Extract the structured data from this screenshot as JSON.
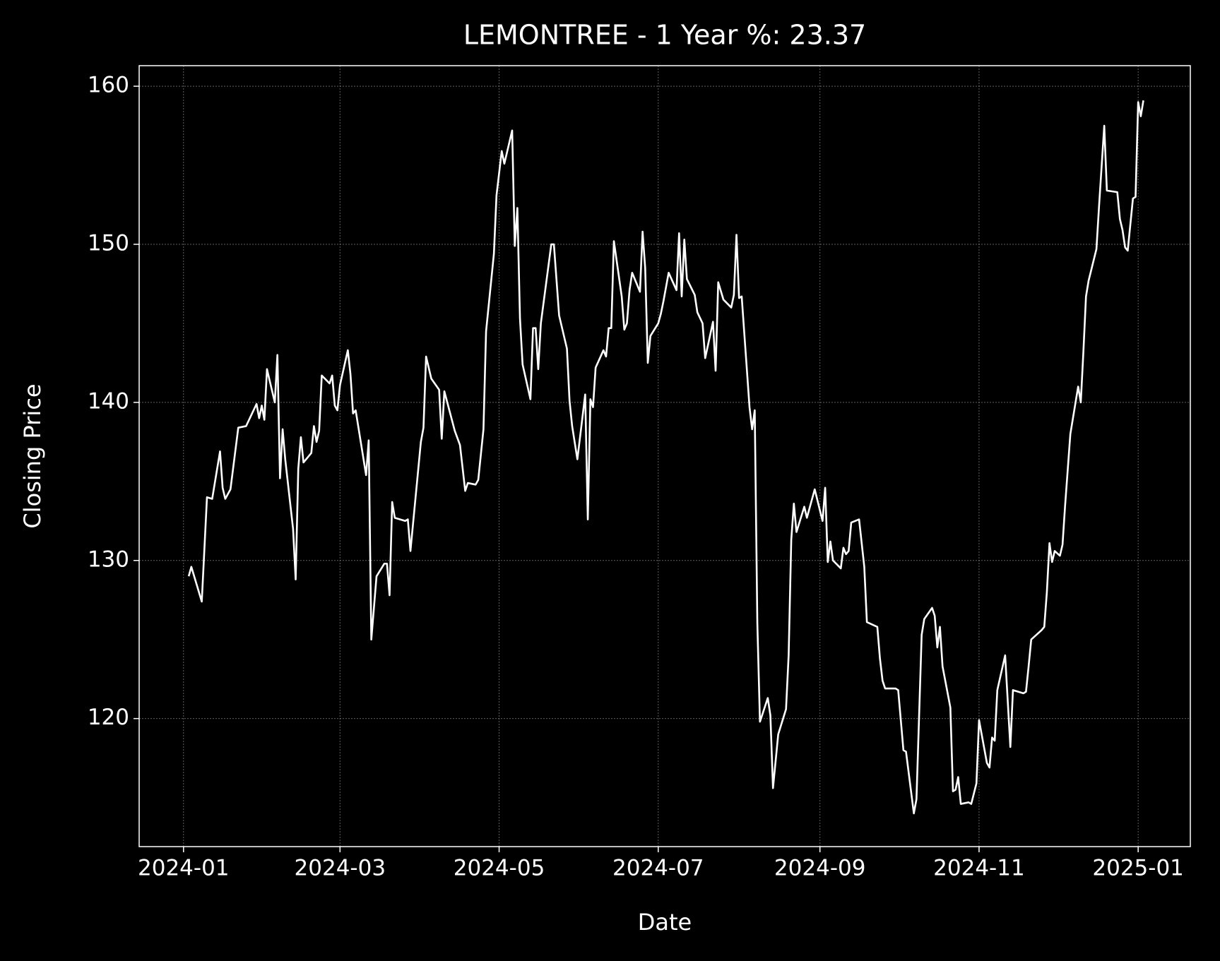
{
  "chart_data": {
    "type": "line",
    "title": "LEMONTREE - 1 Year %: 23.37",
    "xlabel": "Date",
    "ylabel": "Closing Price",
    "color": "#ffffff",
    "grid": true,
    "xlim": [
      "2023-12-15",
      "2025-01-21"
    ],
    "xticks": [
      "2024-01",
      "2024-03",
      "2024-05",
      "2024-07",
      "2024-09",
      "2024-11",
      "2025-01"
    ],
    "ylim": [
      111.9,
      161.3
    ],
    "yticks": [
      120,
      130,
      140,
      150,
      160
    ],
    "x": [
      "2024-01-03",
      "2024-01-04",
      "2024-01-08",
      "2024-01-10",
      "2024-01-12",
      "2024-01-15",
      "2024-01-16",
      "2024-01-17",
      "2024-01-19",
      "2024-01-22",
      "2024-01-25",
      "2024-01-29",
      "2024-01-30",
      "2024-01-31",
      "2024-02-01",
      "2024-02-02",
      "2024-02-05",
      "2024-02-06",
      "2024-02-07",
      "2024-02-08",
      "2024-02-09",
      "2024-02-12",
      "2024-02-13",
      "2024-02-14",
      "2024-02-15",
      "2024-02-16",
      "2024-02-19",
      "2024-02-20",
      "2024-02-21",
      "2024-02-22",
      "2024-02-23",
      "2024-02-26",
      "2024-02-27",
      "2024-02-28",
      "2024-02-29",
      "2024-03-01",
      "2024-03-04",
      "2024-03-05",
      "2024-03-06",
      "2024-03-07",
      "2024-03-11",
      "2024-03-12",
      "2024-03-13",
      "2024-03-15",
      "2024-03-18",
      "2024-03-19",
      "2024-03-20",
      "2024-03-21",
      "2024-03-22",
      "2024-03-26",
      "2024-03-27",
      "2024-03-28",
      "2024-04-01",
      "2024-04-02",
      "2024-04-03",
      "2024-04-05",
      "2024-04-08",
      "2024-04-09",
      "2024-04-10",
      "2024-04-14",
      "2024-04-16",
      "2024-04-18",
      "2024-04-19",
      "2024-04-22",
      "2024-04-23",
      "2024-04-25",
      "2024-04-26",
      "2024-04-29",
      "2024-04-30",
      "2024-05-02",
      "2024-05-03",
      "2024-05-06",
      "2024-05-07",
      "2024-05-08",
      "2024-05-09",
      "2024-05-10",
      "2024-05-13",
      "2024-05-14",
      "2024-05-15",
      "2024-05-16",
      "2024-05-17",
      "2024-05-21",
      "2024-05-22",
      "2024-05-24",
      "2024-05-27",
      "2024-05-28",
      "2024-05-29",
      "2024-05-31",
      "2024-06-03",
      "2024-06-04",
      "2024-06-05",
      "2024-06-06",
      "2024-06-07",
      "2024-06-10",
      "2024-06-11",
      "2024-06-12",
      "2024-06-13",
      "2024-06-14",
      "2024-06-17",
      "2024-06-18",
      "2024-06-19",
      "2024-06-20",
      "2024-06-21",
      "2024-06-24",
      "2024-06-25",
      "2024-06-26",
      "2024-06-27",
      "2024-06-28",
      "2024-07-01",
      "2024-07-02",
      "2024-07-03",
      "2024-07-05",
      "2024-07-08",
      "2024-07-09",
      "2024-07-10",
      "2024-07-11",
      "2024-07-12",
      "2024-07-15",
      "2024-07-16",
      "2024-07-18",
      "2024-07-19",
      "2024-07-22",
      "2024-07-23",
      "2024-07-24",
      "2024-07-26",
      "2024-07-29",
      "2024-07-30",
      "2024-07-31",
      "2024-08-01",
      "2024-08-02",
      "2024-08-05",
      "2024-08-06",
      "2024-08-07",
      "2024-08-08",
      "2024-08-09",
      "2024-08-12",
      "2024-08-13",
      "2024-08-14",
      "2024-08-16",
      "2024-08-19",
      "2024-08-20",
      "2024-08-21",
      "2024-08-22",
      "2024-08-23",
      "2024-08-26",
      "2024-08-27",
      "2024-08-30",
      "2024-09-02",
      "2024-09-03",
      "2024-09-04",
      "2024-09-05",
      "2024-09-06",
      "2024-09-09",
      "2024-09-10",
      "2024-09-11",
      "2024-09-12",
      "2024-09-13",
      "2024-09-16",
      "2024-09-18",
      "2024-09-19",
      "2024-09-23",
      "2024-09-24",
      "2024-09-25",
      "2024-09-26",
      "2024-09-30",
      "2024-10-01",
      "2024-10-03",
      "2024-10-04",
      "2024-10-07",
      "2024-10-08",
      "2024-10-10",
      "2024-10-11",
      "2024-10-14",
      "2024-10-15",
      "2024-10-16",
      "2024-10-17",
      "2024-10-18",
      "2024-10-21",
      "2024-10-22",
      "2024-10-23",
      "2024-10-24",
      "2024-10-25",
      "2024-10-28",
      "2024-10-29",
      "2024-10-31",
      "2024-11-01",
      "2024-11-04",
      "2024-11-05",
      "2024-11-06",
      "2024-11-07",
      "2024-11-08",
      "2024-11-11",
      "2024-11-13",
      "2024-11-14",
      "2024-11-18",
      "2024-11-19",
      "2024-11-20",
      "2024-11-21",
      "2024-11-25",
      "2024-11-26",
      "2024-11-27",
      "2024-11-28",
      "2024-11-29",
      "2024-11-30",
      "2024-12-02",
      "2024-12-03",
      "2024-12-04",
      "2024-12-06",
      "2024-12-09",
      "2024-12-10",
      "2024-12-11",
      "2024-12-12",
      "2024-12-13",
      "2024-12-16",
      "2024-12-17",
      "2024-12-19",
      "2024-12-20",
      "2024-12-24",
      "2024-12-25",
      "2024-12-26",
      "2024-12-27",
      "2024-12-28",
      "2024-12-30",
      "2024-12-31",
      "2025-01-01",
      "2025-01-02",
      "2025-01-03"
    ],
    "values": [
      129.0,
      129.6,
      127.4,
      134.0,
      133.9,
      136.9,
      134.6,
      133.9,
      134.5,
      138.4,
      138.5,
      139.9,
      139.0,
      139.8,
      138.9,
      142.1,
      140.0,
      143.0,
      135.2,
      138.3,
      136.4,
      132.0,
      128.8,
      135.8,
      137.8,
      136.2,
      136.8,
      138.5,
      137.5,
      138.2,
      141.7,
      141.2,
      141.7,
      139.8,
      139.5,
      141.1,
      143.3,
      141.8,
      139.3,
      139.5,
      135.4,
      137.6,
      125.0,
      129.0,
      129.8,
      129.8,
      127.8,
      133.7,
      132.7,
      132.5,
      132.6,
      130.6,
      137.5,
      138.4,
      142.9,
      141.5,
      140.8,
      137.7,
      140.7,
      138.2,
      137.3,
      134.4,
      134.9,
      134.8,
      135.1,
      138.3,
      144.5,
      149.4,
      153.1,
      155.9,
      155.1,
      157.2,
      149.9,
      152.3,
      145.3,
      142.4,
      140.2,
      144.7,
      144.7,
      142.1,
      145.0,
      150.0,
      150.0,
      145.5,
      143.4,
      140.1,
      138.5,
      136.4,
      140.5,
      132.6,
      140.2,
      139.7,
      142.2,
      143.3,
      142.9,
      144.7,
      144.7,
      150.2,
      146.7,
      144.6,
      145.0,
      147.1,
      148.2,
      147.0,
      150.8,
      148.5,
      142.5,
      144.2,
      145.0,
      145.6,
      146.4,
      148.2,
      147.1,
      150.7,
      146.7,
      150.3,
      147.8,
      146.8,
      145.7,
      145.0,
      142.8,
      145.1,
      142.0,
      147.6,
      146.5,
      146.0,
      146.8,
      150.6,
      146.6,
      146.7,
      139.7,
      138.3,
      139.5,
      126.0,
      119.8,
      121.3,
      120.2,
      115.6,
      119.0,
      120.6,
      124.0,
      131.3,
      133.6,
      131.8,
      133.4,
      132.7,
      134.5,
      132.5,
      134.6,
      129.9,
      131.2,
      130.0,
      129.5,
      130.8,
      130.4,
      130.6,
      132.4,
      132.6,
      129.6,
      126.1,
      125.8,
      123.8,
      122.4,
      121.9,
      121.9,
      121.8,
      118.0,
      117.9,
      114.0,
      114.9,
      125.3,
      126.3,
      127.0,
      126.5,
      124.5,
      125.8,
      123.3,
      120.7,
      115.4,
      115.5,
      116.3,
      114.6,
      114.7,
      114.6,
      115.9,
      119.9,
      117.2,
      116.9,
      118.8,
      118.6,
      121.8,
      124.0,
      118.2,
      121.8,
      121.6,
      121.7,
      123.3,
      125.0,
      125.6,
      125.8,
      128.0,
      131.1,
      129.9,
      130.6,
      130.3,
      131.0,
      133.5,
      138.0,
      141.0,
      140.0,
      143.2,
      146.7,
      147.7,
      149.7,
      152.4,
      157.5,
      153.4,
      153.3,
      151.6,
      150.9,
      149.8,
      149.6,
      152.9,
      153.0,
      159.0,
      158.1,
      159.1
    ]
  }
}
